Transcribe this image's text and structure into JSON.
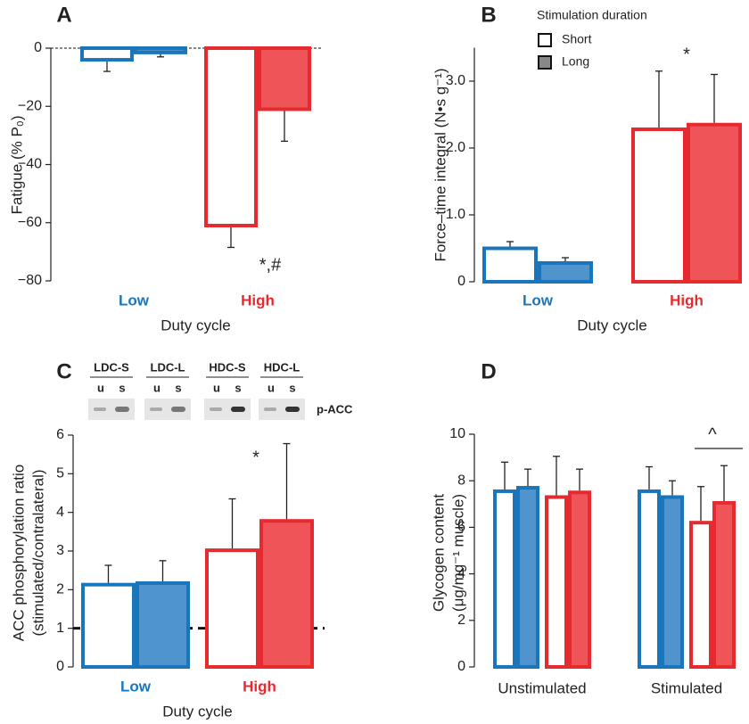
{
  "chart_data": [
    {
      "type": "bar",
      "letter": "A",
      "ylabel": "Fatigue (% P₀)",
      "xlabel": "Duty cycle",
      "categories": [
        "Low",
        "High"
      ],
      "category_colors": [
        [
          "#1b75bb",
          "#4f94cd"
        ],
        [
          "#e52b30",
          "#ef5458"
        ]
      ],
      "series": [
        {
          "filled": false,
          "values": [
            -4,
            -61
          ],
          "errors": [
            4,
            7.5
          ]
        },
        {
          "filled": true,
          "values": [
            -1.5,
            -21
          ],
          "errors": [
            1.5,
            11
          ]
        }
      ],
      "ylim": [
        -80,
        0
      ],
      "yticks": [
        {
          "value": -80,
          "label": "−80"
        },
        {
          "value": -60,
          "label": "−60"
        },
        {
          "value": -40,
          "label": "−40"
        },
        {
          "value": -20,
          "label": "−20"
        },
        0
      ],
      "refline": 0,
      "annotations": [
        "*,#"
      ]
    },
    {
      "type": "bar",
      "letter": "B",
      "ylabel": "Force–time integral (N•s g⁻¹)",
      "xlabel": "Duty cycle",
      "categories": [
        "Low",
        "High"
      ],
      "category_colors": [
        [
          "#1b75bb",
          "#4f94cd"
        ],
        [
          "#e52b30",
          "#ef5458"
        ]
      ],
      "legend_title": "Stimulation duration",
      "series": [
        {
          "name": "Short",
          "legend_color": "#ffffff",
          "filled": false,
          "values": [
            0.5,
            2.28
          ],
          "errors": [
            0.1,
            0.87
          ]
        },
        {
          "name": "Long",
          "legend_color": "#888888",
          "filled": true,
          "values": [
            0.28,
            2.35
          ],
          "errors": [
            0.08,
            0.75
          ]
        }
      ],
      "ylim": [
        0,
        3.5
      ],
      "yticks": [
        0,
        {
          "value": 1,
          "label": "1.0"
        },
        {
          "value": 2,
          "label": "2.0"
        },
        {
          "value": 3,
          "label": "3.0"
        }
      ],
      "annotations": [
        "*"
      ]
    },
    {
      "type": "bar",
      "letter": "C",
      "ylabel": [
        "ACC phosphorylation ratio",
        "(stimulated/contralateral)"
      ],
      "xlabel": "Duty cycle",
      "categories": [
        "Low",
        "High"
      ],
      "category_colors": [
        [
          "#1b75bb",
          "#4f94cd"
        ],
        [
          "#e52b30",
          "#ef5458"
        ]
      ],
      "series": [
        {
          "filled": false,
          "values": [
            2.13,
            3.02
          ],
          "errors": [
            0.5,
            1.33
          ]
        },
        {
          "filled": true,
          "values": [
            2.17,
            3.78
          ],
          "errors": [
            0.58,
            2.0
          ]
        }
      ],
      "ylim": [
        0,
        6
      ],
      "yticks": [
        0,
        1,
        2,
        3,
        4,
        5,
        6
      ],
      "refline": 1,
      "annotations": [
        "*"
      ],
      "blot": {
        "lanes": [
          "LDC-S",
          "LDC-L",
          "HDC-S",
          "HDC-L"
        ],
        "sublanes": [
          "u",
          "s"
        ],
        "label": "p-ACC"
      }
    },
    {
      "type": "bar",
      "letter": "D",
      "ylabel": [
        "Glycogen content",
        "(μg/mg⁻¹ muscle)"
      ],
      "categories": [
        "Unstimulated",
        "Stimulated"
      ],
      "series": [
        {
          "colors": [
            "#1b75bb",
            "#4f94cd"
          ],
          "filled": false,
          "values": [
            7.55,
            7.55
          ],
          "errors": [
            1.25,
            1.05
          ]
        },
        {
          "colors": [
            "#1b75bb",
            "#4f94cd"
          ],
          "filled": true,
          "values": [
            7.7,
            7.3
          ],
          "errors": [
            0.8,
            0.7
          ]
        },
        {
          "colors": [
            "#e52b30",
            "#ef5458"
          ],
          "filled": false,
          "values": [
            7.3,
            6.2
          ],
          "errors": [
            1.75,
            1.55
          ]
        },
        {
          "colors": [
            "#e52b30",
            "#ef5458"
          ],
          "filled": true,
          "values": [
            7.5,
            7.05
          ],
          "errors": [
            1.0,
            1.6
          ]
        }
      ],
      "ylim": [
        0,
        10
      ],
      "yticks": [
        0,
        2,
        4,
        6,
        8,
        10
      ],
      "annotations": [
        "^"
      ]
    }
  ]
}
